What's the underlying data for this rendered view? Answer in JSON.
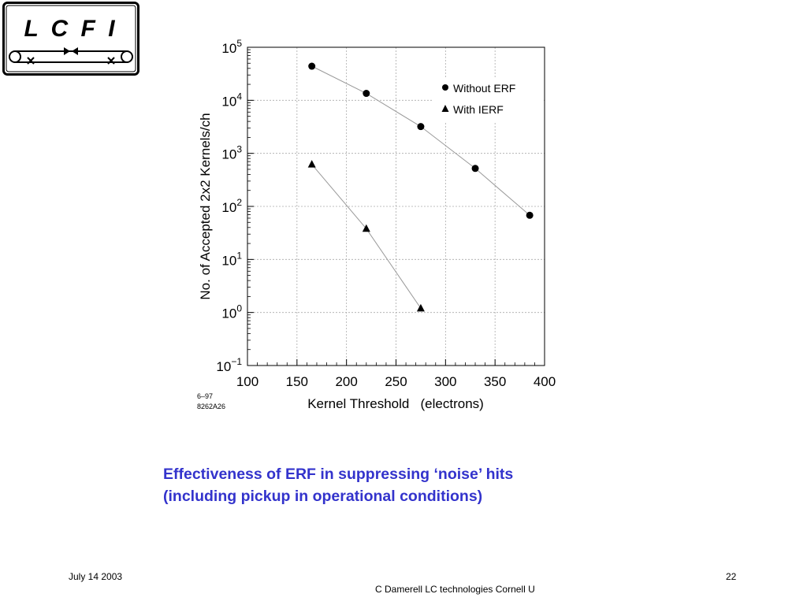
{
  "logo": {
    "text": "L C F I"
  },
  "chart_data": {
    "type": "scatter",
    "xlabel": "Kernel Threshold   (electrons)",
    "ylabel": "No. of Accepted 2x2 Kernels/ch",
    "xlim": [
      100,
      400
    ],
    "ylim": [
      0.1,
      100000
    ],
    "yscale": "log",
    "xticks": [
      100,
      150,
      200,
      250,
      300,
      350,
      400
    ],
    "yticks": [
      {
        "value": 0.1,
        "base": "10",
        "exp": "−1"
      },
      {
        "value": 1,
        "base": "10",
        "exp": "0"
      },
      {
        "value": 10,
        "base": "10",
        "exp": "1"
      },
      {
        "value": 100,
        "base": "10",
        "exp": "2"
      },
      {
        "value": 1000,
        "base": "10",
        "exp": "3"
      },
      {
        "value": 10000,
        "base": "10",
        "exp": "4"
      },
      {
        "value": 100000,
        "base": "10",
        "exp": "5"
      }
    ],
    "grid": true,
    "legend_position": "top-right",
    "series": [
      {
        "name": "Without ERF",
        "marker": "circle",
        "x": [
          165,
          220,
          275,
          330,
          385
        ],
        "y": [
          44000,
          13500,
          3200,
          520,
          68
        ]
      },
      {
        "name": "With IERF",
        "marker": "triangle",
        "x": [
          165,
          220,
          275
        ],
        "y": [
          620,
          38,
          1.2
        ]
      }
    ],
    "annotation": [
      "6–97",
      "8262A26"
    ]
  },
  "caption": {
    "line1": "Effectiveness of ERF in suppressing ‘noise’ hits",
    "line2": "(including pickup in operational conditions)"
  },
  "footer": {
    "date": "July 14 2003",
    "page": "22",
    "author": "C Damerell LC technologies Cornell U"
  }
}
